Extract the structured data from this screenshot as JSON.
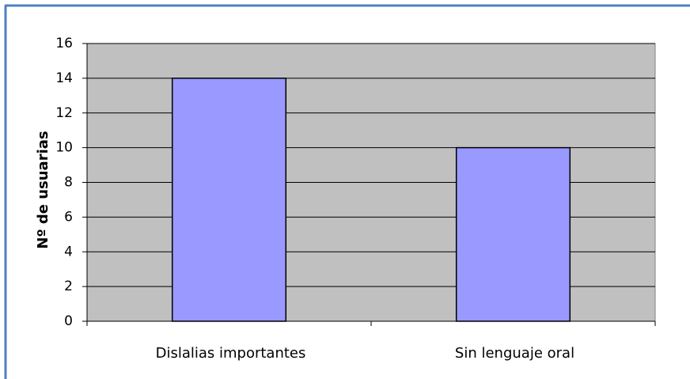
{
  "chart_data": {
    "type": "bar",
    "y_label": "Nº de usuarias",
    "categories": [
      "Dislalias importantes",
      "Sin lenguaje oral"
    ],
    "values": [
      14,
      10
    ],
    "color": "#9999ff",
    "ylim": [
      0,
      16
    ],
    "yticks": [
      0,
      2,
      4,
      6,
      8,
      10,
      12,
      14,
      16
    ],
    "grid": true
  }
}
